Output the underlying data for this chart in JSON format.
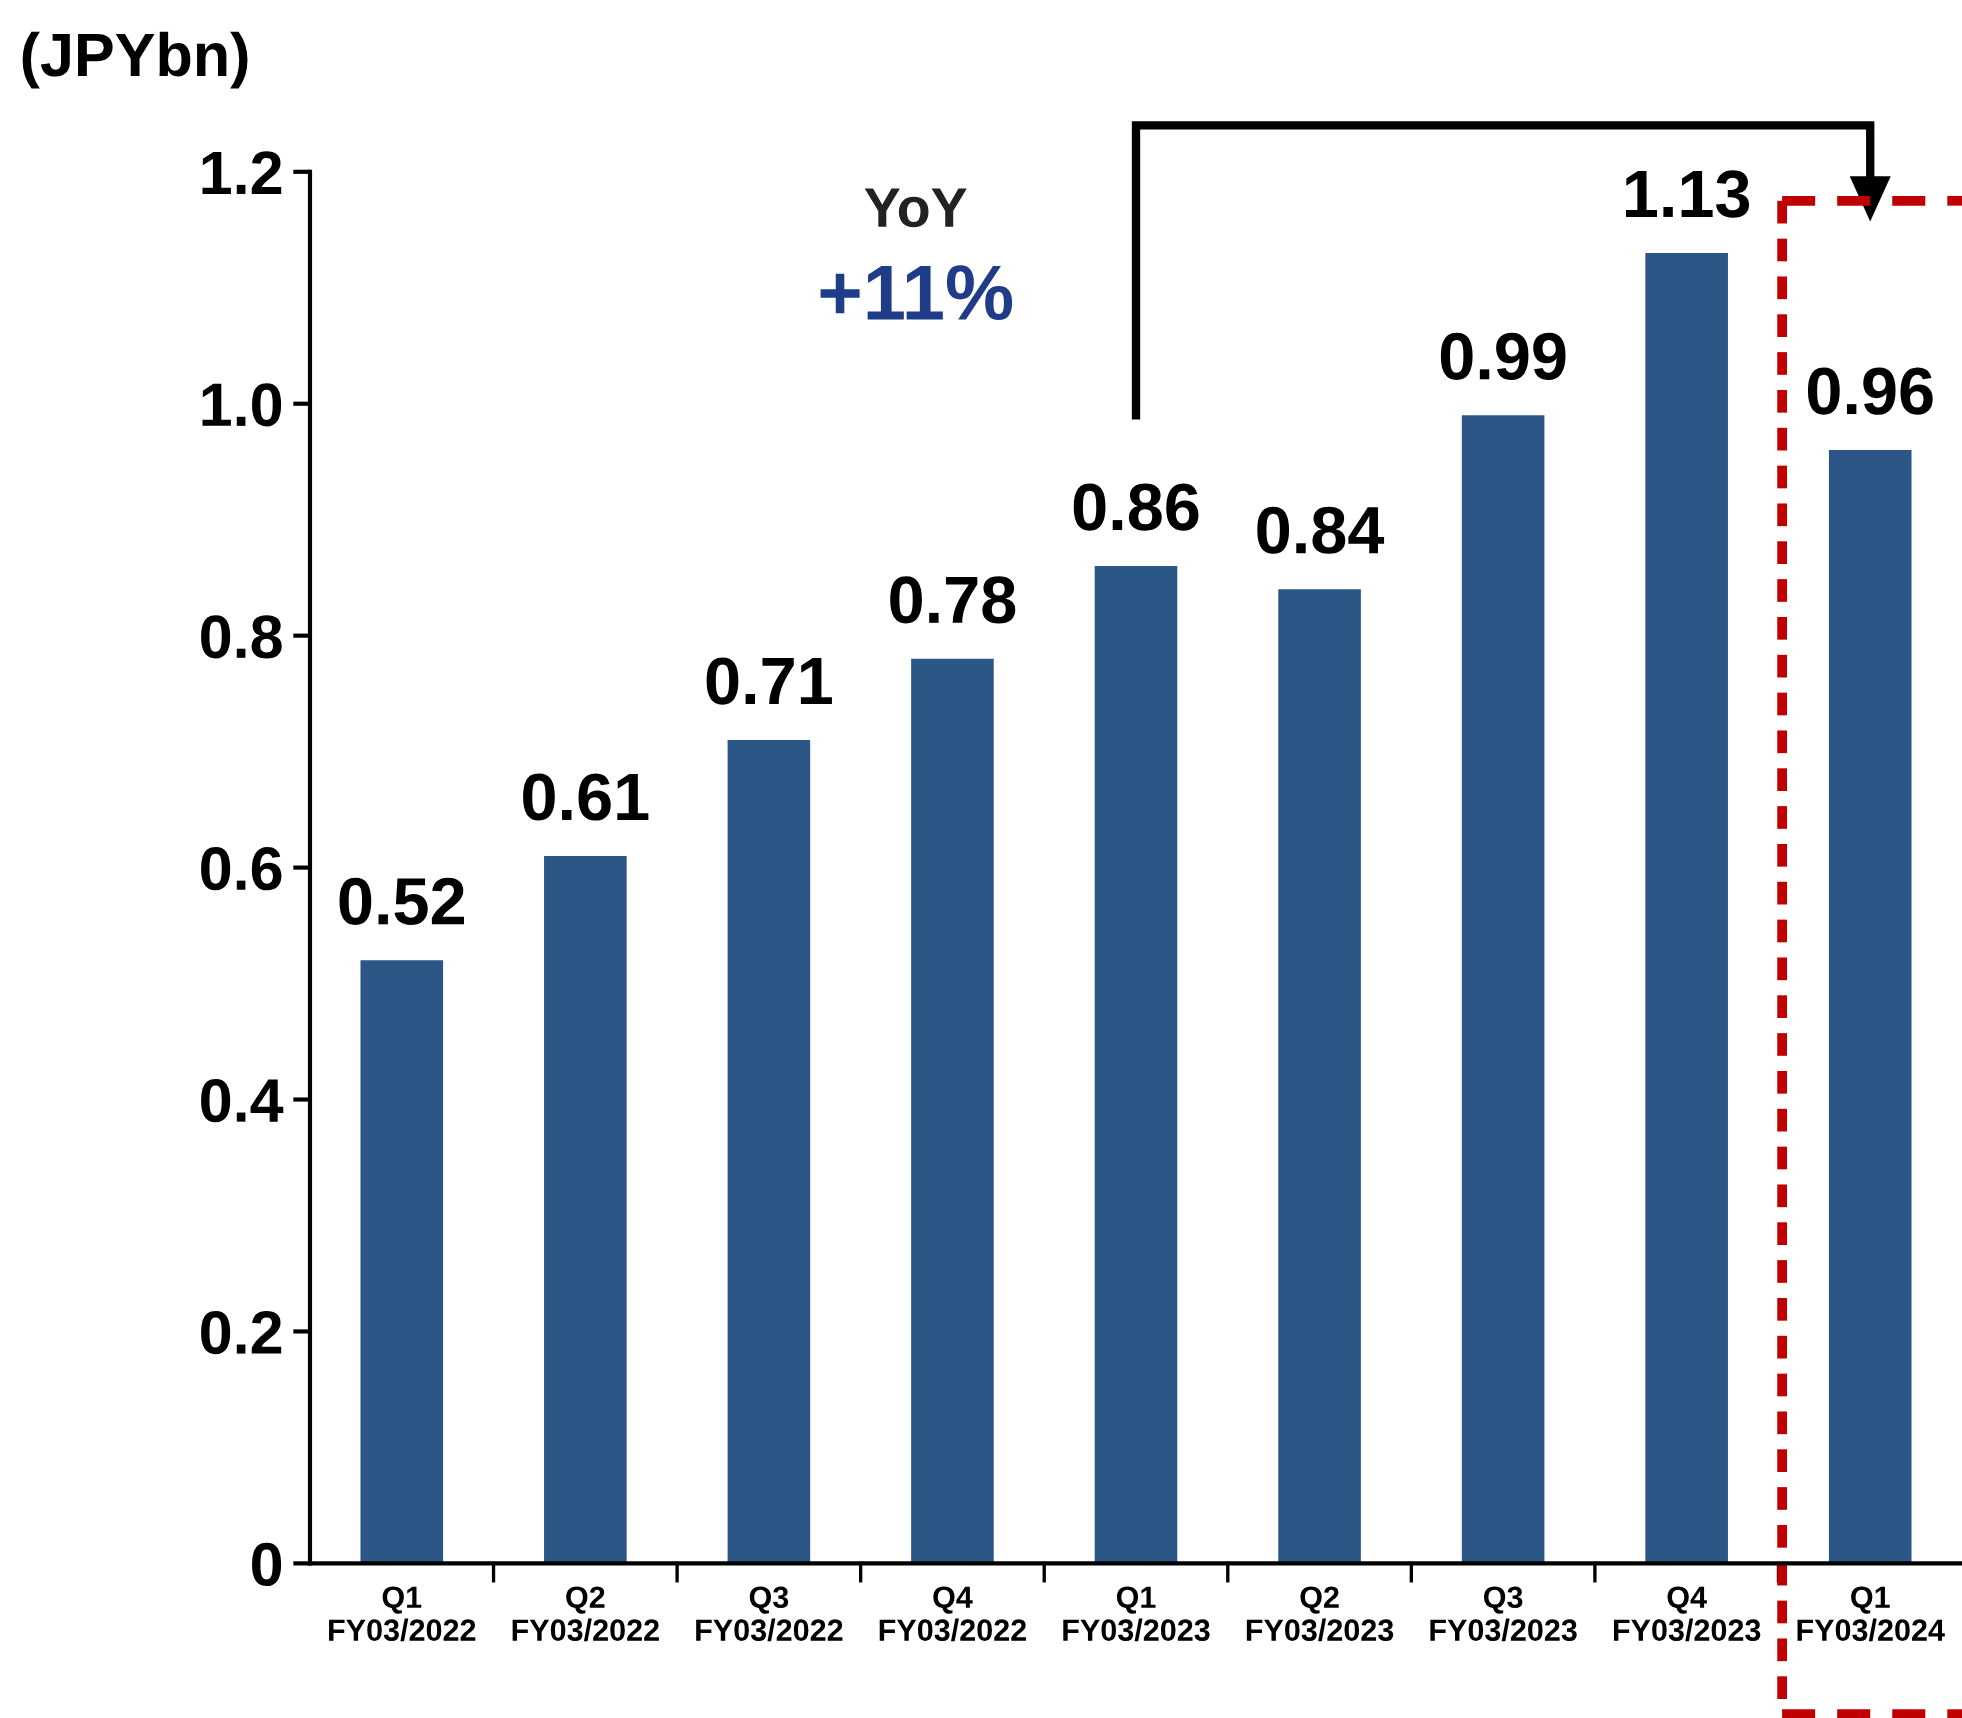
{
  "chart_data": {
    "type": "bar",
    "ylabel": "(JPYbn)",
    "categories": [
      "Q1\nFY03/2022",
      "Q2\nFY03/2022",
      "Q3\nFY03/2022",
      "Q4\nFY03/2022",
      "Q1\nFY03/2023",
      "Q2\nFY03/2023",
      "Q3\nFY03/2023",
      "Q4\nFY03/2023",
      "Q1\nFY03/2024"
    ],
    "values": [
      0.52,
      0.61,
      0.71,
      0.78,
      0.86,
      0.84,
      0.99,
      1.13,
      0.96
    ],
    "color": "#2b5686",
    "ylim": [
      0,
      1.2
    ],
    "yticks": [
      0,
      0.2,
      0.4,
      0.6,
      0.8,
      {
        "value": 1.0,
        "label": "1.0"
      },
      1.2
    ],
    "data_labels": true,
    "grid": false,
    "annotations": [
      "YoY",
      "+11%"
    ]
  }
}
